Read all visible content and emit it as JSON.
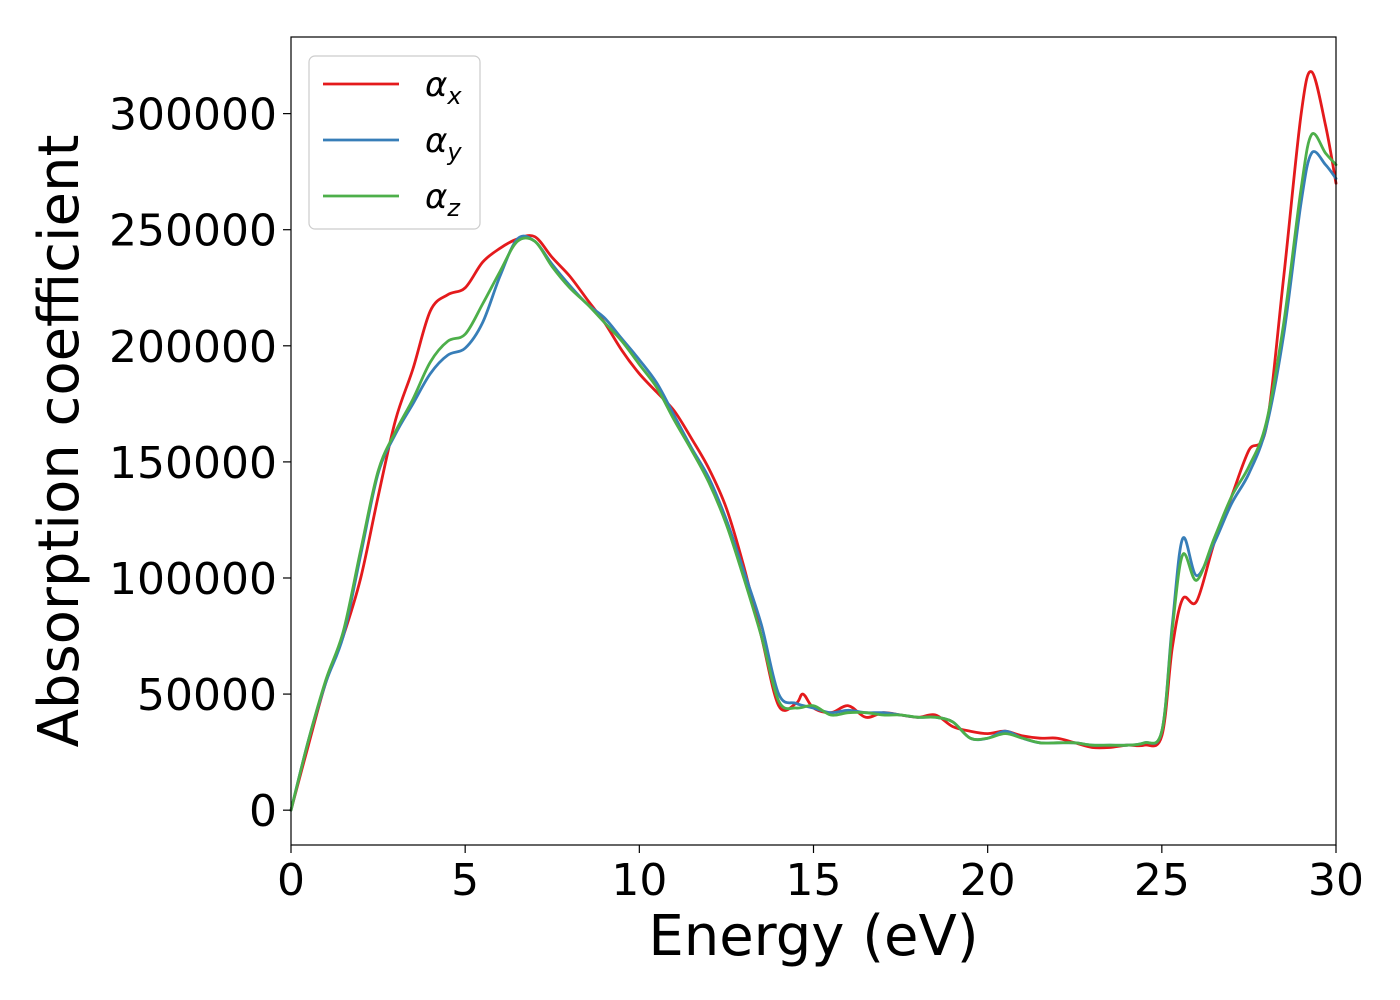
{
  "chart_data": {
    "type": "line",
    "xlabel": "Energy (eV)",
    "ylabel": "Absorption coefficient",
    "xlim": [
      0,
      30
    ],
    "ylim": [
      -15000,
      333000
    ],
    "xticks": [
      0,
      5,
      10,
      15,
      20,
      25,
      30
    ],
    "yticks": [
      0,
      50000,
      100000,
      150000,
      200000,
      250000,
      300000
    ],
    "xtick_labels": [
      "0",
      "5",
      "10",
      "15",
      "20",
      "25",
      "30"
    ],
    "ytick_labels": [
      "0",
      "50000",
      "100000",
      "150000",
      "200000",
      "250000",
      "300000"
    ],
    "grid": false,
    "legend_position": "top-left",
    "series": [
      {
        "name": "α",
        "subscript": "x",
        "color": "#e41a1c",
        "x": [
          0,
          0.5,
          1,
          1.5,
          2,
          2.5,
          3,
          3.5,
          4,
          4.5,
          5,
          5.5,
          6,
          6.5,
          7,
          7.5,
          8,
          8.5,
          9,
          9.5,
          10,
          10.5,
          11,
          11.5,
          12,
          12.5,
          13,
          13.5,
          14,
          14.5,
          14.7,
          15,
          15.5,
          16,
          16.5,
          17,
          17.5,
          18,
          18.5,
          19,
          19.5,
          20,
          20.5,
          21,
          21.5,
          22,
          22.5,
          23,
          23.5,
          24,
          24.5,
          25,
          25.3,
          25.6,
          26,
          26.5,
          27,
          27.5,
          28,
          28.5,
          29,
          29.3,
          29.7,
          30
        ],
        "values": [
          0,
          28000,
          55000,
          75000,
          100000,
          135000,
          168000,
          190000,
          215000,
          222000,
          225000,
          236000,
          242000,
          246000,
          247000,
          238000,
          230000,
          220000,
          210000,
          198000,
          188000,
          180000,
          172000,
          160000,
          147000,
          130000,
          105000,
          75000,
          45000,
          46000,
          50000,
          44000,
          42000,
          45000,
          40000,
          42000,
          41000,
          40000,
          41000,
          36000,
          34000,
          33000,
          34000,
          32000,
          31000,
          31000,
          29000,
          27000,
          27000,
          28000,
          28000,
          32000,
          70000,
          91000,
          90000,
          115000,
          135000,
          155000,
          165000,
          230000,
          300000,
          318000,
          295000,
          270000
        ]
      },
      {
        "name": "α",
        "subscript": "y",
        "color": "#377eb8",
        "x": [
          0,
          0.5,
          1,
          1.5,
          2,
          2.5,
          3,
          3.5,
          4,
          4.5,
          5,
          5.5,
          6,
          6.5,
          7,
          7.5,
          8,
          8.5,
          9,
          9.5,
          10,
          10.5,
          11,
          11.5,
          12,
          12.5,
          13,
          13.5,
          14,
          14.5,
          15,
          15.5,
          16,
          16.5,
          17,
          17.5,
          18,
          18.5,
          19,
          19.5,
          20,
          20.5,
          21,
          21.5,
          22,
          22.5,
          23,
          23.5,
          24,
          24.5,
          25,
          25.3,
          25.6,
          26,
          26.5,
          27,
          27.5,
          28,
          28.5,
          29,
          29.3,
          29.7,
          30
        ],
        "values": [
          0,
          30000,
          55000,
          75000,
          110000,
          145000,
          162000,
          175000,
          188000,
          196000,
          199000,
          210000,
          230000,
          246000,
          245000,
          235000,
          226000,
          218000,
          212000,
          203000,
          194000,
          184000,
          170000,
          156000,
          143000,
          125000,
          103000,
          80000,
          50000,
          46000,
          44000,
          42000,
          43000,
          42000,
          42000,
          41000,
          40000,
          40000,
          38000,
          31000,
          31000,
          34000,
          31000,
          29000,
          29000,
          29000,
          28000,
          28000,
          28000,
          29000,
          34000,
          80000,
          117000,
          101000,
          115000,
          132000,
          145000,
          165000,
          205000,
          262000,
          283000,
          278000,
          272000
        ]
      },
      {
        "name": "α",
        "subscript": "z",
        "color": "#4daf4a",
        "x": [
          0,
          0.5,
          1,
          1.5,
          2,
          2.5,
          3,
          3.5,
          4,
          4.5,
          5,
          5.5,
          6,
          6.5,
          7,
          7.5,
          8,
          8.5,
          9,
          9.5,
          10,
          10.5,
          11,
          11.5,
          12,
          12.5,
          13,
          13.5,
          14,
          14.5,
          15,
          15.5,
          16,
          16.5,
          17,
          17.5,
          18,
          18.5,
          19,
          19.5,
          20,
          20.5,
          21,
          21.5,
          22,
          22.5,
          23,
          23.5,
          24,
          24.5,
          25,
          25.3,
          25.6,
          26,
          26.5,
          27,
          27.5,
          28,
          28.5,
          29,
          29.3,
          29.7,
          30
        ],
        "values": [
          0,
          30000,
          56000,
          77000,
          112000,
          146000,
          163000,
          177000,
          193000,
          202000,
          205000,
          218000,
          232000,
          245000,
          245000,
          234000,
          225000,
          218000,
          210000,
          202000,
          192000,
          182000,
          168000,
          155000,
          141000,
          123000,
          100000,
          75000,
          47000,
          44000,
          45000,
          41000,
          42000,
          42000,
          41000,
          41000,
          40000,
          40000,
          38000,
          31000,
          31000,
          33000,
          31000,
          29000,
          29000,
          29000,
          28000,
          28000,
          28000,
          29000,
          34000,
          78000,
          110000,
          99000,
          117000,
          135000,
          148000,
          167000,
          210000,
          268000,
          291000,
          283000,
          278000
        ]
      }
    ]
  }
}
